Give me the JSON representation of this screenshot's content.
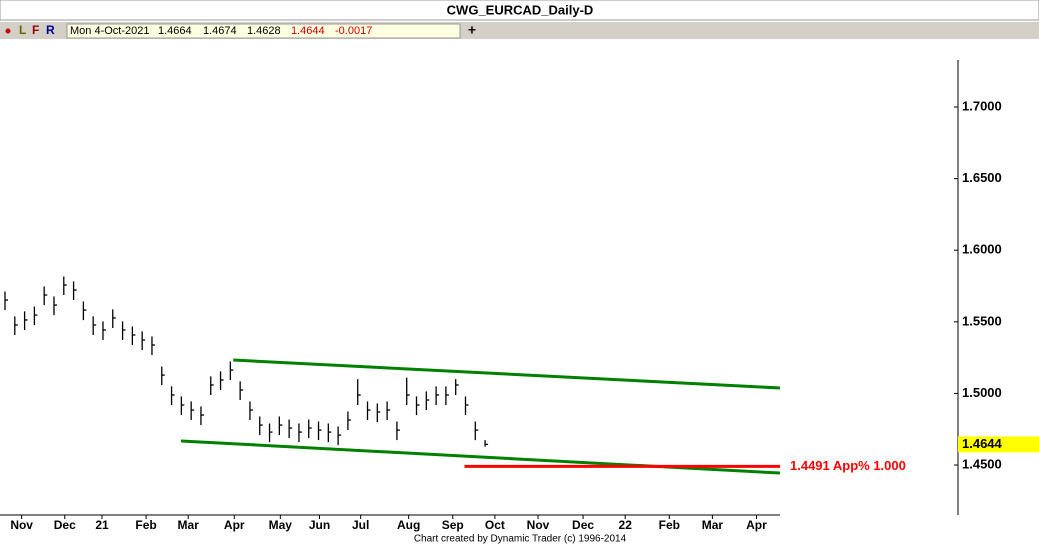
{
  "chart_data": {
    "type": "ohlc",
    "title": "CWG_EURCAD_Daily-D",
    "toolbar": [
      "L",
      "F",
      "R"
    ],
    "info": {
      "date": "Mon 4-Oct-2021",
      "open": 1.4664,
      "high": 1.4674,
      "low": 1.4628,
      "close": 1.4644,
      "change": -0.0017
    },
    "footer": "Chart created by Dynamic Trader  (c) 1996-2014",
    "color": "#000000",
    "high": [
      1.5712,
      1.5538,
      1.5573,
      1.5607,
      1.5747,
      1.5677,
      1.5817,
      1.5782,
      1.5642,
      1.5538,
      1.5503,
      1.5587,
      1.5503,
      1.5468,
      1.5433,
      1.5398,
      1.5188,
      1.5049,
      1.4979,
      1.4944,
      1.4909,
      1.5119,
      1.5154,
      1.5223,
      1.5084,
      1.4944,
      1.4839,
      1.479,
      1.4839,
      1.4818,
      1.479,
      1.4818,
      1.4804,
      1.479,
      1.4769,
      1.4874,
      1.51,
      1.4944,
      1.493,
      1.4944,
      1.4804,
      1.511,
      1.4979,
      1.5014,
      1.5049,
      1.5049,
      1.51,
      1.4979,
      1.4804,
      1.4674
    ],
    "low": [
      1.5582,
      1.5408,
      1.5443,
      1.5477,
      1.5617,
      1.5547,
      1.5687,
      1.5652,
      1.5512,
      1.5408,
      1.5373,
      1.5457,
      1.5373,
      1.5338,
      1.5303,
      1.5268,
      1.5058,
      1.4919,
      1.4849,
      1.4814,
      1.4779,
      1.4989,
      1.5024,
      1.5093,
      1.4954,
      1.4814,
      1.4709,
      1.466,
      1.4709,
      1.4688,
      1.466,
      1.4688,
      1.4674,
      1.466,
      1.4639,
      1.4744,
      1.4919,
      1.4814,
      1.48,
      1.4814,
      1.4674,
      1.4919,
      1.4849,
      1.4884,
      1.4919,
      1.4919,
      1.4989,
      1.4849,
      1.4674,
      1.4628
    ],
    "close": [
      1.5652,
      1.5478,
      1.5513,
      1.5547,
      1.5687,
      1.5617,
      1.5757,
      1.5722,
      1.5582,
      1.5478,
      1.5443,
      1.5527,
      1.5443,
      1.5408,
      1.5373,
      1.5338,
      1.5128,
      1.4989,
      1.4919,
      1.4884,
      1.4849,
      1.5059,
      1.5094,
      1.5163,
      1.5024,
      1.4884,
      1.4779,
      1.473,
      1.4779,
      1.4758,
      1.473,
      1.4758,
      1.4744,
      1.473,
      1.4709,
      1.4814,
      1.4989,
      1.4884,
      1.487,
      1.4884,
      1.4744,
      1.4989,
      1.4919,
      1.4954,
      1.4989,
      1.4989,
      1.5059,
      1.4919,
      1.4744,
      1.4644
    ],
    "xlim": [
      0,
      79.1
    ],
    "xticks": [
      {
        "value": 1.7,
        "label": "Nov"
      },
      {
        "value": 6.1,
        "label": "Dec"
      },
      {
        "value": 9.9,
        "label": "21"
      },
      {
        "value": 14.4,
        "label": "Feb"
      },
      {
        "value": 18.7,
        "label": "Mar"
      },
      {
        "value": 23.4,
        "label": "Apr"
      },
      {
        "value": 28.1,
        "label": "May"
      },
      {
        "value": 32.1,
        "label": "Jun"
      },
      {
        "value": 36.3,
        "label": "Jul"
      },
      {
        "value": 41.2,
        "label": "Aug"
      },
      {
        "value": 45.7,
        "label": "Sep"
      },
      {
        "value": 50,
        "label": "Oct"
      },
      {
        "value": 54.4,
        "label": "Nov"
      },
      {
        "value": 59,
        "label": "Dec"
      },
      {
        "value": 63.3,
        "label": "22"
      },
      {
        "value": 67.8,
        "label": "Feb"
      },
      {
        "value": 72.2,
        "label": "Mar"
      },
      {
        "value": 76.7,
        "label": "Apr"
      }
    ],
    "ylim": [
      1.4165,
      1.7468
    ],
    "yticks": [
      {
        "value": 1.45,
        "label": "1.4500"
      },
      {
        "value": 1.5,
        "label": "1.5000"
      },
      {
        "value": 1.55,
        "label": "1.5500"
      },
      {
        "value": 1.6,
        "label": "1.6000"
      },
      {
        "value": 1.65,
        "label": "1.6500"
      },
      {
        "value": 1.7,
        "label": "1.7000"
      }
    ],
    "last_price": {
      "value": 1.4644,
      "label": "1.4644"
    },
    "trendlines": [
      {
        "color": "#008000",
        "x": [
          23.3,
          79.1
        ],
        "y": [
          1.5233,
          1.5038
        ]
      },
      {
        "color": "#008000",
        "x": [
          17.96,
          79.1
        ],
        "y": [
          1.4668,
          1.4444
        ]
      }
    ],
    "level": {
      "color": "#ff0000",
      "x": [
        46.9,
        79.1
      ],
      "value": 1.4491,
      "label": "1.4491 App% 1.000"
    }
  }
}
